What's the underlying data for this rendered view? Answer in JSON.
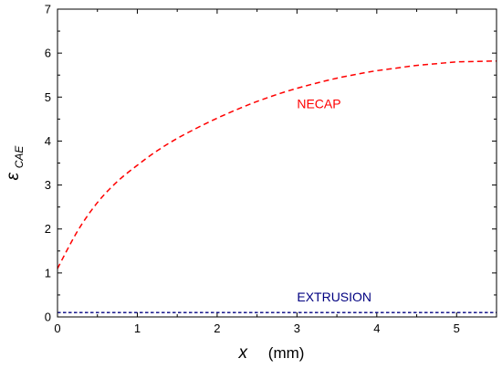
{
  "chart_data": {
    "type": "line",
    "xlabel": {
      "symbol": "x",
      "unit": "(mm)"
    },
    "ylabel": {
      "symbol": "ε",
      "subscript": "CAE"
    },
    "xlim": [
      0,
      5.5
    ],
    "ylim": [
      0,
      7
    ],
    "xticks": [
      0,
      1,
      2,
      3,
      4,
      5
    ],
    "yticks": [
      0,
      1,
      2,
      3,
      4,
      5,
      6,
      7
    ],
    "grid": false,
    "series": [
      {
        "name": "NECAP",
        "color": "#ff0000",
        "style": "dashed",
        "x": [
          0,
          0.25,
          0.5,
          0.75,
          1.0,
          1.25,
          1.5,
          1.75,
          2.0,
          2.25,
          2.5,
          2.75,
          3.0,
          3.25,
          3.5,
          3.75,
          4.0,
          4.25,
          4.5,
          4.75,
          5.0,
          5.25,
          5.5
        ],
        "y": [
          1.1,
          1.95,
          2.6,
          3.08,
          3.45,
          3.78,
          4.06,
          4.3,
          4.52,
          4.72,
          4.9,
          5.06,
          5.2,
          5.32,
          5.43,
          5.52,
          5.6,
          5.66,
          5.72,
          5.76,
          5.8,
          5.81,
          5.82
        ]
      },
      {
        "name": "EXTRUSION",
        "color": "#000080",
        "style": "dashed",
        "x": [
          0,
          5.5
        ],
        "y": [
          0.1,
          0.1
        ]
      }
    ],
    "annotations": [
      {
        "text": "NECAP",
        "x": 3.0,
        "y": 4.75,
        "color": "#ff0000"
      },
      {
        "text": "EXTRUSION",
        "x": 3.0,
        "y": 0.35,
        "color": "#000080"
      }
    ]
  }
}
